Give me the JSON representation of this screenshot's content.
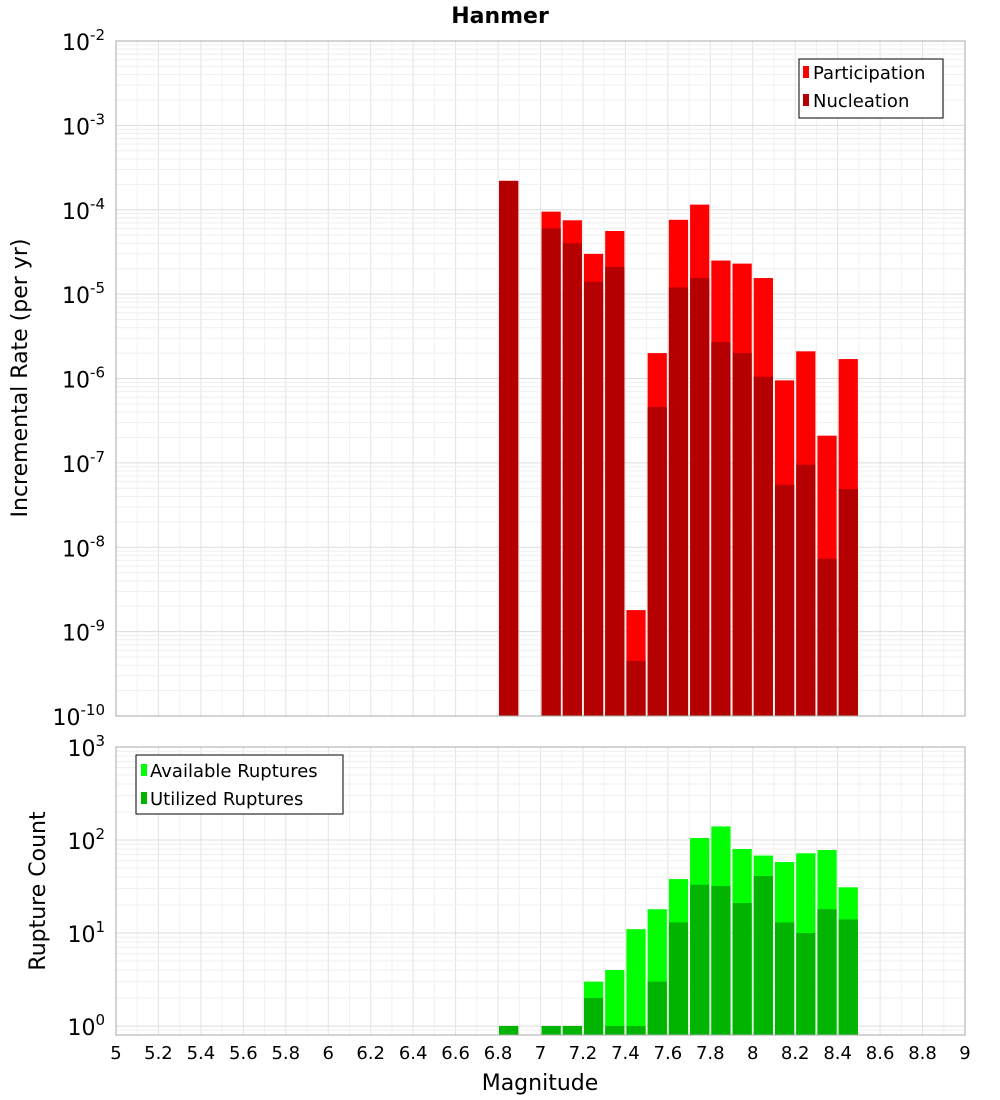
{
  "chart_data": [
    {
      "type": "bar",
      "title": "Hanmer",
      "xlabel": "",
      "ylabel": "Incremental Rate (per yr)",
      "yscale": "log",
      "ylim": [
        1e-10,
        0.01
      ],
      "xlim": [
        5,
        9
      ],
      "ytick_bases": [
        "10",
        "10",
        "10",
        "10",
        "10",
        "10",
        "10",
        "10",
        "10"
      ],
      "ytick_exps": [
        "-10",
        "-9",
        "-8",
        "-7",
        "-6",
        "-5",
        "-4",
        "-3",
        "-2"
      ],
      "legend_position": "top-right",
      "x": [
        6.85,
        7.05,
        7.15,
        7.25,
        7.35,
        7.45,
        7.55,
        7.65,
        7.75,
        7.85,
        7.95,
        8.05,
        8.15,
        8.25,
        8.35,
        8.45
      ],
      "series": [
        {
          "name": "Participation",
          "color": "#ff0000",
          "values": [
            0.00022,
            9.5e-05,
            7.5e-05,
            3e-05,
            5.6e-05,
            1.8e-09,
            2e-06,
            7.6e-05,
            0.000115,
            2.5e-05,
            2.3e-05,
            1.55e-05,
            9.5e-07,
            2.1e-06,
            2.1e-07,
            1.7e-06
          ]
        },
        {
          "name": "Nucleation",
          "color": "#b40000",
          "values": [
            0.00022,
            6e-05,
            4e-05,
            1.4e-05,
            2.1e-05,
            4.5e-10,
            4.6e-07,
            1.2e-05,
            1.55e-05,
            2.7e-06,
            2e-06,
            1.05e-06,
            5.5e-08,
            9.5e-08,
            7.3e-09,
            4.9e-08
          ]
        }
      ]
    },
    {
      "type": "bar",
      "title": "",
      "xlabel": "Magnitude",
      "ylabel": "Rupture Count",
      "yscale": "log",
      "ylim": [
        0.8,
        1000
      ],
      "xlim": [
        5,
        9
      ],
      "ytick_bases": [
        "10",
        "10",
        "10",
        "10"
      ],
      "ytick_exps": [
        "0",
        "1",
        "2",
        "3"
      ],
      "xticks": [
        "5",
        "5.2",
        "5.4",
        "5.6",
        "5.8",
        "6",
        "6.2",
        "6.4",
        "6.6",
        "6.8",
        "7",
        "7.2",
        "7.4",
        "7.6",
        "7.8",
        "8",
        "8.2",
        "8.4",
        "8.6",
        "8.8",
        "9"
      ],
      "legend_position": "top-left",
      "x": [
        6.85,
        7.05,
        7.15,
        7.25,
        7.35,
        7.45,
        7.55,
        7.65,
        7.75,
        7.85,
        7.95,
        8.05,
        8.15,
        8.25,
        8.35,
        8.45
      ],
      "series": [
        {
          "name": "Available Ruptures",
          "color": "#00ff00",
          "values": [
            1,
            1,
            1,
            3,
            4,
            11,
            18,
            38,
            105,
            140,
            80,
            68,
            58,
            72,
            78,
            31
          ]
        },
        {
          "name": "Utilized Ruptures",
          "color": "#00b400",
          "values": [
            1,
            1,
            1,
            2,
            1,
            1,
            3,
            13,
            33,
            32,
            21,
            41,
            13,
            10,
            18,
            14
          ]
        }
      ]
    }
  ]
}
